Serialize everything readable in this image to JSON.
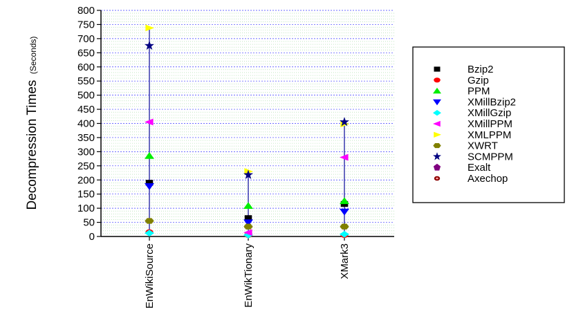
{
  "chart_data": {
    "type": "scatter",
    "ylabel": "Decompression Times",
    "ylabel_unit": "(Seconds)",
    "ylim": [
      0,
      800
    ],
    "yticks": [
      0,
      50,
      100,
      150,
      200,
      250,
      300,
      350,
      400,
      450,
      500,
      550,
      600,
      650,
      700,
      750,
      800
    ],
    "categories": [
      "EnWikiSource",
      "EnWikTionary",
      "XMark3"
    ],
    "grid": true,
    "legend_position": "right",
    "series": [
      {
        "name": "Bzip2",
        "marker": "square",
        "color": "#000000",
        "values": [
          190,
          65,
          115
        ]
      },
      {
        "name": "Gzip",
        "marker": "circle",
        "color": "#ff0000",
        "values": [
          15,
          5,
          5
        ]
      },
      {
        "name": "PPM",
        "marker": "triangle-up",
        "color": "#00ee00",
        "values": [
          285,
          108,
          125
        ]
      },
      {
        "name": "XMillBzip2",
        "marker": "triangle-down",
        "color": "#0000ff",
        "values": [
          178,
          50,
          88
        ]
      },
      {
        "name": "XMillGzip",
        "marker": "diamond",
        "color": "#00ffff",
        "values": [
          12,
          5,
          8
        ]
      },
      {
        "name": "XMillPPM",
        "marker": "triangle-left",
        "color": "#ff00ff",
        "values": [
          405,
          14,
          280
        ]
      },
      {
        "name": "XMLPPM",
        "marker": "triangle-right",
        "color": "#ffff00",
        "values": [
          738,
          230,
          398
        ]
      },
      {
        "name": "XWRT",
        "marker": "hexagon",
        "color": "#808000",
        "values": [
          55,
          35,
          35
        ]
      },
      {
        "name": "SCMPPM",
        "marker": "star",
        "color": "#000080",
        "values": [
          675,
          218,
          405
        ]
      },
      {
        "name": "Exalt",
        "marker": "pentagon",
        "color": "#800080",
        "values": [
          null,
          null,
          null
        ]
      },
      {
        "name": "Axechop",
        "marker": "circle-dark",
        "color": "#8b0000",
        "values": [
          null,
          null,
          null
        ]
      }
    ]
  }
}
